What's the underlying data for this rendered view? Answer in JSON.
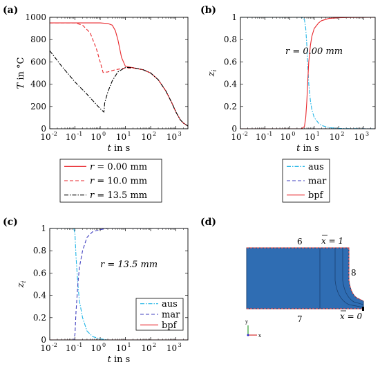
{
  "colors": {
    "red": "#e8262b",
    "blue": "#3f3fbf",
    "cyan": "#1fb4e6",
    "black": "#000000",
    "mesh_fill": "#2f6db3",
    "mesh_edge": "#e05050"
  },
  "panel_labels": [
    "(a)",
    "(b)",
    "(c)",
    "(d)"
  ],
  "chart_data": [
    {
      "type": "line",
      "panel": "(a)",
      "xlabel": "t in s",
      "ylabel": "T in °C",
      "xscale": "log",
      "xlim": [
        0.01,
        3000
      ],
      "ylim": [
        0,
        1000
      ],
      "xticks": [
        "10^-2",
        "10^-1",
        "10^0",
        "10^1",
        "10^2",
        "10^3"
      ],
      "yticks": [
        "0",
        "200",
        "400",
        "600",
        "800",
        "1000"
      ],
      "legend_position": "below",
      "series": [
        {
          "name": "r = 0.00 mm",
          "color": "#e8262b",
          "dash": "solid",
          "x": [
            0.01,
            1,
            2,
            3,
            4,
            5,
            7,
            10,
            20,
            50,
            100,
            200,
            400,
            700,
            1000,
            1500,
            2000,
            3000
          ],
          "y": [
            950,
            950,
            945,
            930,
            880,
            800,
            640,
            560,
            548,
            530,
            500,
            440,
            340,
            230,
            150,
            80,
            50,
            25
          ]
        },
        {
          "name": "r = 10.0 mm",
          "color": "#e8262b",
          "dash": "dashed",
          "x": [
            0.01,
            0.1,
            0.2,
            0.4,
            0.7,
            1,
            1.3,
            2,
            4,
            10,
            20,
            50,
            100,
            200,
            400,
            700,
            1000,
            1500,
            2000,
            3000
          ],
          "y": [
            950,
            950,
            930,
            860,
            720,
            600,
            505,
            510,
            530,
            545,
            545,
            530,
            500,
            440,
            340,
            230,
            150,
            80,
            50,
            25
          ]
        },
        {
          "name": "r = 13.5 mm",
          "color": "#000000",
          "dash": "dashdot",
          "x": [
            0.01,
            0.03,
            0.1,
            0.3,
            1,
            1.4,
            1.5,
            2,
            3,
            5,
            10,
            20,
            50,
            100,
            200,
            400,
            700,
            1000,
            1500,
            2000,
            3000
          ],
          "y": [
            700,
            560,
            420,
            310,
            180,
            150,
            230,
            330,
            430,
            510,
            550,
            548,
            530,
            500,
            440,
            340,
            230,
            150,
            80,
            50,
            25
          ]
        }
      ]
    },
    {
      "type": "line",
      "panel": "(b)",
      "annotation": "r = 0.00 mm",
      "xlabel": "t in s",
      "ylabel": "z_i",
      "xscale": "log",
      "xlim": [
        0.01,
        3000
      ],
      "ylim": [
        0,
        1
      ],
      "xticks": [
        "10^-2",
        "10^-1",
        "10^0",
        "10^1",
        "10^2",
        "10^3"
      ],
      "yticks": [
        "0",
        "0.2",
        "0.4",
        "0.6",
        "0.8",
        "1"
      ],
      "legend_position": "below",
      "series": [
        {
          "name": "aus",
          "color": "#1fb4e6",
          "dash": "dashdot",
          "x": [
            0.01,
            3,
            4,
            4.5,
            5,
            5.5,
            6,
            7,
            8,
            10,
            15,
            20,
            40,
            100,
            300,
            3000
          ],
          "y": [
            1,
            1,
            0.98,
            0.9,
            0.75,
            0.55,
            0.4,
            0.25,
            0.17,
            0.1,
            0.05,
            0.03,
            0.01,
            0.004,
            0.001,
            0
          ]
        },
        {
          "name": "mar",
          "color": "#3f3fbf",
          "dash": "dashed",
          "x": [
            0.01,
            3000
          ],
          "y": [
            0,
            0
          ]
        },
        {
          "name": "bpf",
          "color": "#e8262b",
          "dash": "solid",
          "x": [
            0.01,
            3,
            4,
            4.5,
            5,
            5.5,
            6,
            7,
            8,
            10,
            15,
            20,
            40,
            100,
            300,
            3000
          ],
          "y": [
            0,
            0,
            0.02,
            0.1,
            0.25,
            0.45,
            0.6,
            0.75,
            0.83,
            0.9,
            0.95,
            0.97,
            0.99,
            0.996,
            0.999,
            1
          ]
        }
      ]
    },
    {
      "type": "line",
      "panel": "(c)",
      "annotation": "r = 13.5 mm",
      "xlabel": "t in s",
      "ylabel": "z_i",
      "xscale": "log",
      "xlim": [
        0.01,
        3000
      ],
      "ylim": [
        0,
        1
      ],
      "xticks": [
        "10^-2",
        "10^-1",
        "10^0",
        "10^1",
        "10^2",
        "10^3"
      ],
      "yticks": [
        "0",
        "0.2",
        "0.4",
        "0.6",
        "0.8",
        "1"
      ],
      "legend_position": "bottom-right",
      "series": [
        {
          "name": "aus",
          "color": "#1fb4e6",
          "dash": "dashdot",
          "x": [
            0.01,
            0.09,
            0.1,
            0.11,
            0.13,
            0.15,
            0.2,
            0.3,
            0.5,
            1,
            2,
            3000
          ],
          "y": [
            1,
            1,
            0.95,
            0.75,
            0.5,
            0.35,
            0.2,
            0.08,
            0.03,
            0.01,
            0,
            0
          ]
        },
        {
          "name": "mar",
          "color": "#3f3fbf",
          "dash": "dashed",
          "x": [
            0.01,
            0.09,
            0.1,
            0.11,
            0.13,
            0.15,
            0.2,
            0.3,
            0.5,
            1,
            2,
            3000
          ],
          "y": [
            0,
            0,
            0.05,
            0.25,
            0.5,
            0.65,
            0.8,
            0.92,
            0.97,
            0.99,
            1,
            1
          ]
        },
        {
          "name": "bpf",
          "color": "#e8262b",
          "dash": "solid",
          "x": [
            0.01,
            3000
          ],
          "y": [
            0,
            0
          ]
        }
      ]
    }
  ],
  "panel_d": {
    "labels": [
      "6",
      "7",
      "8"
    ],
    "xbar_top": "x = 1",
    "xbar_bottom": "x = 0",
    "axis_labels": {
      "y": "y",
      "x": "x"
    }
  }
}
